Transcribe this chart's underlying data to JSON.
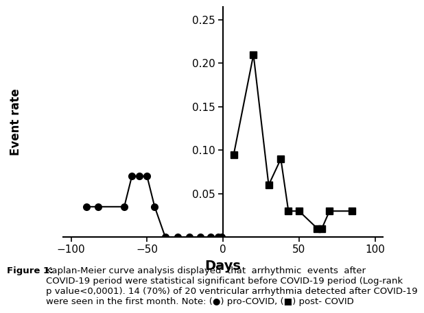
{
  "pro_covid_x": [
    -90,
    -82,
    -65,
    -60,
    -55,
    -50,
    -45,
    -38,
    -30,
    -22,
    -15,
    -8,
    -3,
    -1
  ],
  "pro_covid_y": [
    0.035,
    0.035,
    0.035,
    0.07,
    0.07,
    0.07,
    0.035,
    0.0,
    0.0,
    0.0,
    0.0,
    0.0,
    0.0,
    0.0
  ],
  "post_covid_x": [
    7,
    20,
    30,
    38,
    43,
    50,
    62,
    65,
    70,
    85
  ],
  "post_covid_y": [
    0.095,
    0.21,
    0.06,
    0.09,
    0.03,
    0.03,
    0.01,
    0.01,
    0.03,
    0.03
  ],
  "xlim": [
    -105,
    105
  ],
  "ylim": [
    0,
    0.265
  ],
  "xticks": [
    -100,
    -50,
    0,
    50,
    100
  ],
  "yticks": [
    0.05,
    0.1,
    0.15,
    0.2,
    0.25
  ],
  "xlabel": "Days",
  "ylabel": "Event rate",
  "line_color": "#000000",
  "marker_color": "#000000",
  "background_color": "#ffffff",
  "caption_bold": "Figure 1:",
  "caption_text": "Kaplan-Meier curve analysis displayed  that  arrhythmic  events  after COVID-19 period were statistical significant before COVID-19 period (Log-rank p value<0,0001). 14 (70%) of 20 ventricular arrhythmia detected after COVID-19 were seen in the first month. Note: (●) pro-COVID, (■) post- COVID"
}
